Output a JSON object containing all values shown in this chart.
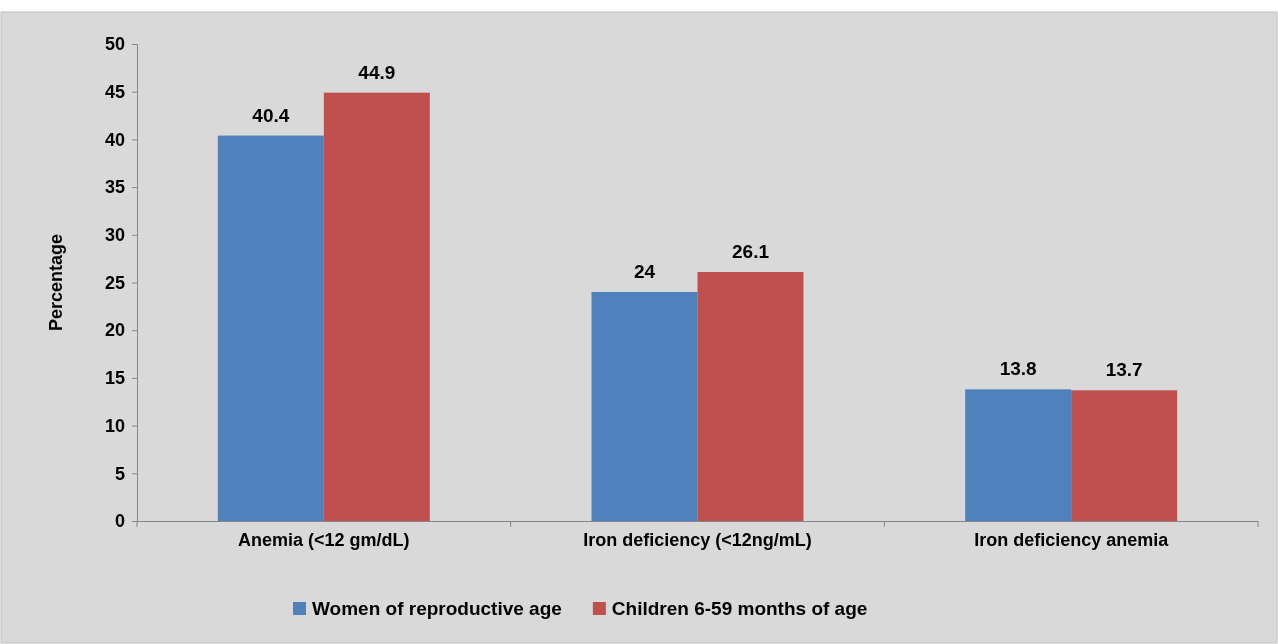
{
  "chart_data": {
    "type": "bar",
    "ylabel": "Percentage",
    "categories": [
      "Anemia (<12 gm/dL)",
      "Iron deficiency (<12ng/mL)",
      "Iron deficiency anemia"
    ],
    "series": [
      {
        "name": "Women of reproductive age",
        "color": "#4f81bd",
        "values": [
          40.4,
          24,
          13.8
        ]
      },
      {
        "name": "Children 6-59 months of age",
        "color": "#c0504d",
        "values": [
          44.9,
          26.1,
          13.7
        ]
      }
    ],
    "ylim": [
      0,
      50
    ],
    "yticks": [
      0,
      5,
      10,
      15,
      20,
      25,
      30,
      35,
      40,
      45,
      50
    ],
    "data_labels": true,
    "legend": "bottom",
    "grid": false
  }
}
